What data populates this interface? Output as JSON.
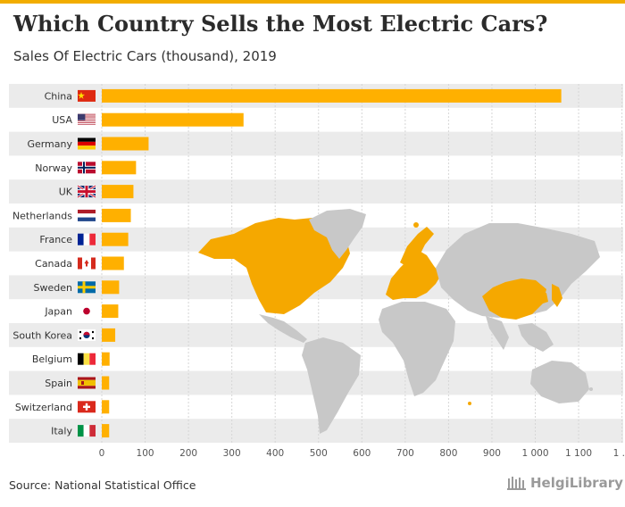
{
  "header": {
    "title": "Which Country Sells the Most Electric Cars?",
    "subtitle": "Sales Of Electric Cars (thousand), 2019"
  },
  "footer": {
    "source": "Source: National Statistical Office",
    "brand": "HelgiLibrary"
  },
  "colors": {
    "bar": "#ffb000",
    "accent": "#f2ad00",
    "row_band": "#ebebeb",
    "map_land": "#c8c8c8",
    "map_highlight": "#f5a800"
  },
  "chart_data": {
    "type": "bar",
    "orientation": "horizontal",
    "title": "Which Country Sells the Most Electric Cars?",
    "subtitle": "Sales Of Electric Cars (thousand), 2019",
    "xlabel": "",
    "ylabel": "",
    "xlim": [
      0,
      1200
    ],
    "grid": true,
    "x_ticks": [
      "0",
      "100",
      "200",
      "300",
      "400",
      "500",
      "600",
      "700",
      "800",
      "900",
      "1 000",
      "1 100",
      "1 ..."
    ],
    "categories": [
      "China",
      "USA",
      "Germany",
      "Norway",
      "UK",
      "Netherlands",
      "France",
      "Canada",
      "Sweden",
      "Japan",
      "South Korea",
      "Belgium",
      "Spain",
      "Switzerland",
      "Italy"
    ],
    "flags": [
      "china-flag-icon",
      "usa-flag-icon",
      "germany-flag-icon",
      "norway-flag-icon",
      "uk-flag-icon",
      "netherlands-flag-icon",
      "france-flag-icon",
      "canada-flag-icon",
      "sweden-flag-icon",
      "japan-flag-icon",
      "south-korea-flag-icon",
      "belgium-flag-icon",
      "spain-flag-icon",
      "switzerland-flag-icon",
      "italy-flag-icon"
    ],
    "values": [
      1060,
      327,
      108,
      79,
      73,
      67,
      61,
      51,
      40,
      38,
      31,
      18,
      17,
      17,
      17
    ]
  }
}
